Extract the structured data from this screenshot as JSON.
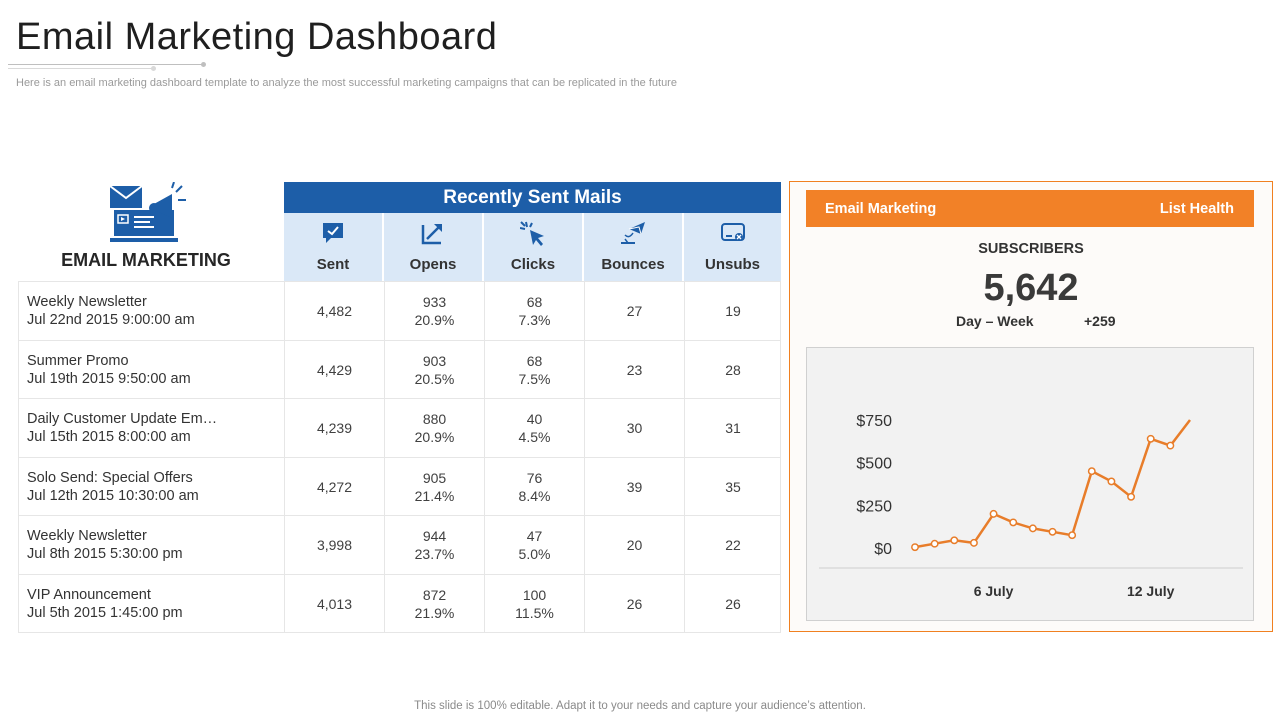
{
  "page": {
    "title": "Email Marketing Dashboard",
    "subtitle": "Here is an email marketing dashboard template to analyze the most successful marketing campaigns that can be replicated in the future",
    "footer": "This slide is 100% editable. Adapt it to your needs and capture your audience’s attention."
  },
  "left_block": {
    "label": "EMAIL MARKETING",
    "icon": "email-marketing-icon"
  },
  "table": {
    "header": "Recently Sent Mails",
    "columns": [
      {
        "label": "Sent",
        "icon": "chat-check-icon"
      },
      {
        "label": "Opens",
        "icon": "open-arrow-icon"
      },
      {
        "label": "Clicks",
        "icon": "cursor-click-icon"
      },
      {
        "label": "Bounces",
        "icon": "bounce-mail-icon"
      },
      {
        "label": "Unsubs",
        "icon": "unsubscribe-icon"
      }
    ],
    "rows": [
      {
        "name": "Weekly Newsletter",
        "date": "Jul 22nd 2015 9:00:00 am",
        "sent": "4,482",
        "opens": "933",
        "opens_pct": "20.9%",
        "clicks": "68",
        "clicks_pct": "7.3%",
        "bounces": "27",
        "unsubs": "19"
      },
      {
        "name": "Summer Promo",
        "date": "Jul 19th 2015 9:50:00 am",
        "sent": "4,429",
        "opens": "903",
        "opens_pct": "20.5%",
        "clicks": "68",
        "clicks_pct": "7.5%",
        "bounces": "23",
        "unsubs": "28"
      },
      {
        "name": "Daily Customer Update Em…",
        "date": "Jul 15th 2015 8:00:00 am",
        "sent": "4,239",
        "opens": "880",
        "opens_pct": "20.9%",
        "clicks": "40",
        "clicks_pct": "4.5%",
        "bounces": "30",
        "unsubs": "31"
      },
      {
        "name": "Solo Send: Special Offers",
        "date": "Jul 12th 2015 10:30:00 am",
        "sent": "4,272",
        "opens": "905",
        "opens_pct": "21.4%",
        "clicks": "76",
        "clicks_pct": "8.4%",
        "bounces": "39",
        "unsubs": "35"
      },
      {
        "name": "Weekly Newsletter",
        "date": "Jul 8th 2015 5:30:00 pm",
        "sent": "3,998",
        "opens": "944",
        "opens_pct": "23.7%",
        "clicks": "47",
        "clicks_pct": "5.0%",
        "bounces": "20",
        "unsubs": "22"
      },
      {
        "name": "VIP Announcement",
        "date": "Jul 5th 2015 1:45:00 pm",
        "sent": "4,013",
        "opens": "872",
        "opens_pct": "21.9%",
        "clicks": "100",
        "clicks_pct": "11.5%",
        "bounces": "26",
        "unsubs": "26"
      }
    ]
  },
  "panel": {
    "bar_left": "Email Marketing",
    "bar_right": "List Health",
    "subs_label": "SUBSCRIBERS",
    "subs_value": "5,642",
    "period": "Day – Week",
    "delta": "+259"
  },
  "colors": {
    "primary_blue": "#1d5ea8",
    "light_blue": "#dae8f7",
    "accent_orange": "#f28127",
    "line_orange": "#e87d2a"
  },
  "chart_data": {
    "type": "line",
    "title": "",
    "xlabel": "",
    "ylabel": "",
    "x_tick_labels": [
      "6 July",
      "12 July"
    ],
    "y_tick_labels": [
      "$0",
      "$250",
      "$500",
      "$750"
    ],
    "ylim": [
      0,
      750
    ],
    "grid": false,
    "legend": "none",
    "series": [
      {
        "values": [
          5,
          25,
          45,
          30,
          200,
          150,
          115,
          95,
          75,
          450,
          390,
          300,
          640,
          600,
          750
        ]
      }
    ]
  }
}
